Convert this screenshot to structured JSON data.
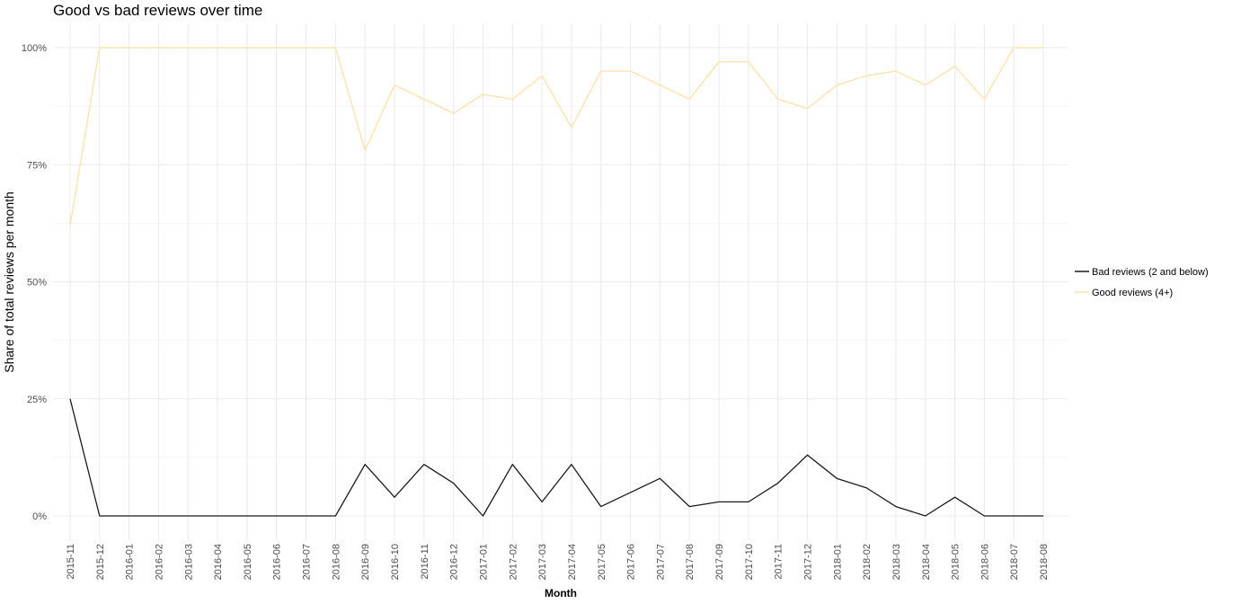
{
  "chart_data": {
    "type": "line",
    "title": "Good vs bad reviews over time",
    "xlabel": "Month",
    "ylabel": "Share of total reviews per month",
    "categories": [
      "2015-11",
      "2015-12",
      "2016-01",
      "2016-02",
      "2016-03",
      "2016-04",
      "2016-05",
      "2016-06",
      "2016-07",
      "2016-08",
      "2016-09",
      "2016-10",
      "2016-11",
      "2016-12",
      "2017-01",
      "2017-02",
      "2017-03",
      "2017-04",
      "2017-05",
      "2017-06",
      "2017-07",
      "2017-08",
      "2017-09",
      "2017-10",
      "2017-11",
      "2017-12",
      "2018-01",
      "2018-02",
      "2018-03",
      "2018-04",
      "2018-05",
      "2018-06",
      "2018-07",
      "2018-08"
    ],
    "ylim": [
      -0.05,
      1.05
    ],
    "yticks": [
      0,
      0.25,
      0.5,
      0.75,
      1.0
    ],
    "ytick_labels": [
      "0%",
      "25%",
      "50%",
      "75%",
      "100%"
    ],
    "grid": true,
    "legend_position": "right",
    "series": [
      {
        "name": "Bad reviews (2 and below)",
        "color": "#1a1a1a",
        "values": [
          0.25,
          0,
          0,
          0,
          0,
          0,
          0,
          0,
          0,
          0,
          0.11,
          0.04,
          0.11,
          0.07,
          0,
          0.11,
          0.03,
          0.11,
          0.02,
          0.05,
          0.08,
          0.02,
          0.03,
          0.03,
          0.07,
          0.13,
          0.08,
          0.06,
          0.02,
          0,
          0.04,
          0,
          0,
          0
        ]
      },
      {
        "name": "Good reviews (4+)",
        "color": "#fbe3b0",
        "values": [
          0.62,
          1,
          1,
          1,
          1,
          1,
          1,
          1,
          1,
          1,
          0.78,
          0.92,
          0.89,
          0.86,
          0.9,
          0.89,
          0.94,
          0.83,
          0.95,
          0.95,
          0.92,
          0.89,
          0.97,
          0.97,
          0.89,
          0.87,
          0.92,
          0.94,
          0.95,
          0.92,
          0.96,
          0.89,
          1,
          1
        ]
      }
    ]
  }
}
